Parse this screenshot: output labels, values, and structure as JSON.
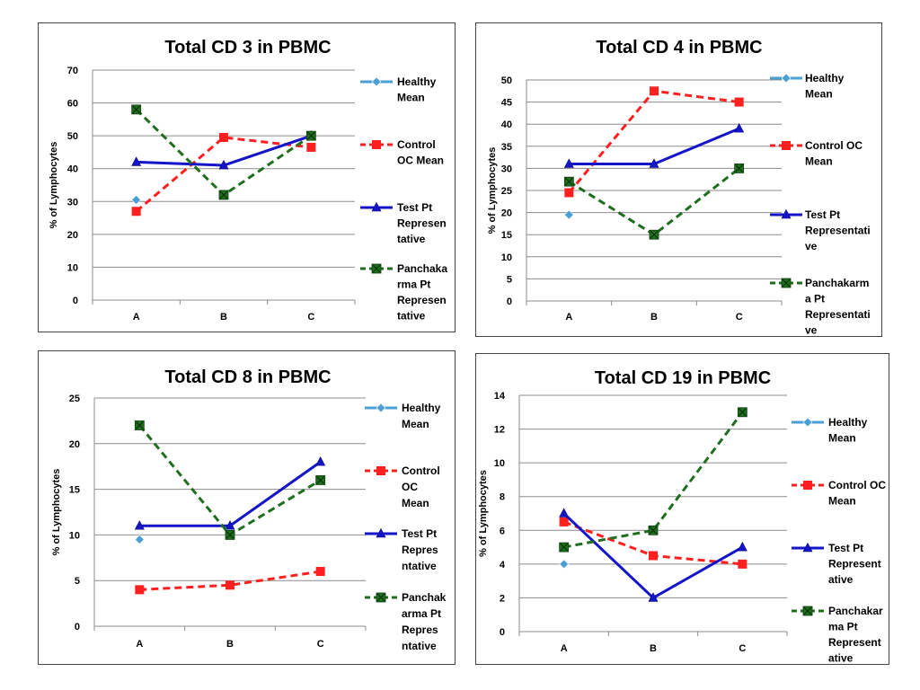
{
  "chart_data": [
    {
      "type": "line",
      "title": "Total CD 3 in PBMC",
      "ylabel": "% of Lymphocytes",
      "xlabel": "",
      "categories": [
        "A",
        "B",
        "C"
      ],
      "ylim": [
        0,
        70
      ],
      "yticks": [
        0,
        10,
        20,
        30,
        40,
        50,
        60,
        70
      ],
      "grid": true,
      "legend_position": "right",
      "series": [
        {
          "name": "Healthy Mean",
          "legend_lines": [
            "Healthy",
            "Mean"
          ],
          "values": [
            30.5,
            null,
            null
          ],
          "color": "#4a9fd4",
          "marker": "diamond",
          "dash": false
        },
        {
          "name": "Control OC Mean",
          "legend_lines": [
            "Control",
            "OC Mean"
          ],
          "values": [
            27,
            49.5,
            46.5
          ],
          "color": "#ff1f1f",
          "marker": "square",
          "dash": true
        },
        {
          "name": "Test Pt Representative",
          "legend_lines": [
            "Test Pt",
            "Represen",
            "tative"
          ],
          "values": [
            42,
            41,
            50
          ],
          "color": "#1414c8",
          "marker": "triangle",
          "dash": false
        },
        {
          "name": "Panchakarma Pt Representative",
          "legend_lines": [
            "Panchaka",
            "rma Pt",
            "Represen",
            "tative"
          ],
          "values": [
            58,
            32,
            50
          ],
          "color": "#1e6e1e",
          "marker": "xsquare",
          "dash": true
        }
      ]
    },
    {
      "type": "line",
      "title": "Total CD 4 in PBMC",
      "ylabel": "% of Lymphocytes",
      "xlabel": "",
      "categories": [
        "A",
        "B",
        "C"
      ],
      "ylim": [
        0,
        50
      ],
      "yticks": [
        0,
        5,
        10,
        15,
        20,
        25,
        30,
        35,
        40,
        45,
        50
      ],
      "grid": true,
      "legend_position": "right",
      "series": [
        {
          "name": "Healthy Mean",
          "legend_lines": [
            "Healthy",
            "Mean"
          ],
          "values": [
            19.5,
            null,
            null
          ],
          "color": "#4a9fd4",
          "marker": "diamond",
          "dash": false
        },
        {
          "name": "Control OC Mean",
          "legend_lines": [
            "Control OC",
            "Mean"
          ],
          "values": [
            24.5,
            47.5,
            45
          ],
          "color": "#ff1f1f",
          "marker": "square",
          "dash": true
        },
        {
          "name": "Test Pt Representative",
          "legend_lines": [
            "Test Pt",
            "Representati",
            "ve"
          ],
          "values": [
            31,
            31,
            39
          ],
          "color": "#1414c8",
          "marker": "triangle",
          "dash": false
        },
        {
          "name": "Panchakarma Pt Representative",
          "legend_lines": [
            "Panchakarm",
            "a Pt",
            "Representati",
            "ve"
          ],
          "values": [
            27,
            15,
            30
          ],
          "color": "#1e6e1e",
          "marker": "xsquare",
          "dash": true
        }
      ]
    },
    {
      "type": "line",
      "title": "Total CD 8  in PBMC",
      "ylabel": "%  of Lymphocytes",
      "xlabel": "",
      "categories": [
        "A",
        "B",
        "C"
      ],
      "ylim": [
        0,
        25
      ],
      "yticks": [
        0,
        5,
        10,
        15,
        20,
        25
      ],
      "grid": true,
      "legend_position": "right",
      "series": [
        {
          "name": "Healthy Mean",
          "legend_lines": [
            "Healthy",
            "Mean"
          ],
          "values": [
            9.5,
            null,
            null
          ],
          "color": "#4a9fd4",
          "marker": "diamond",
          "dash": false
        },
        {
          "name": "Control OC Mean",
          "legend_lines": [
            "Control",
            "OC",
            "Mean"
          ],
          "values": [
            4,
            4.5,
            6
          ],
          "color": "#ff1f1f",
          "marker": "square",
          "dash": true
        },
        {
          "name": "Test Pt Representative",
          "legend_lines": [
            "Test Pt",
            "Repres",
            "ntative"
          ],
          "values": [
            11,
            11,
            18
          ],
          "color": "#1414c8",
          "marker": "triangle",
          "dash": false
        },
        {
          "name": "Panchakarma Pt Representative",
          "legend_lines": [
            "Panchak",
            "arma Pt",
            "Repres",
            "ntative"
          ],
          "values": [
            22,
            10,
            16
          ],
          "color": "#1e6e1e",
          "marker": "xsquare",
          "dash": true
        }
      ]
    },
    {
      "type": "line",
      "title": "Total CD 19 in PBMC",
      "ylabel": "% of Lymphocytes",
      "xlabel": "",
      "categories": [
        "A",
        "B",
        "C"
      ],
      "ylim": [
        0,
        14
      ],
      "yticks": [
        0,
        2,
        4,
        6,
        8,
        10,
        12,
        14
      ],
      "grid": true,
      "legend_position": "right",
      "series": [
        {
          "name": "Healthy Mean",
          "legend_lines": [
            "Healthy",
            "Mean"
          ],
          "values": [
            4,
            null,
            null
          ],
          "color": "#4a9fd4",
          "marker": "diamond",
          "dash": false
        },
        {
          "name": "Control OC Mean",
          "legend_lines": [
            "Control OC",
            "Mean"
          ],
          "values": [
            6.5,
            4.5,
            4
          ],
          "color": "#ff1f1f",
          "marker": "square",
          "dash": true
        },
        {
          "name": "Test Pt Representative",
          "legend_lines": [
            "Test Pt",
            "Represent",
            "ative"
          ],
          "values": [
            7,
            2,
            5
          ],
          "color": "#1414c8",
          "marker": "triangle",
          "dash": false
        },
        {
          "name": "Panchakarma Pt Representative",
          "legend_lines": [
            "Panchakar",
            "ma Pt",
            "Represent",
            "ative"
          ],
          "values": [
            5,
            6,
            13
          ],
          "color": "#1e6e1e",
          "marker": "xsquare",
          "dash": true
        }
      ]
    }
  ]
}
